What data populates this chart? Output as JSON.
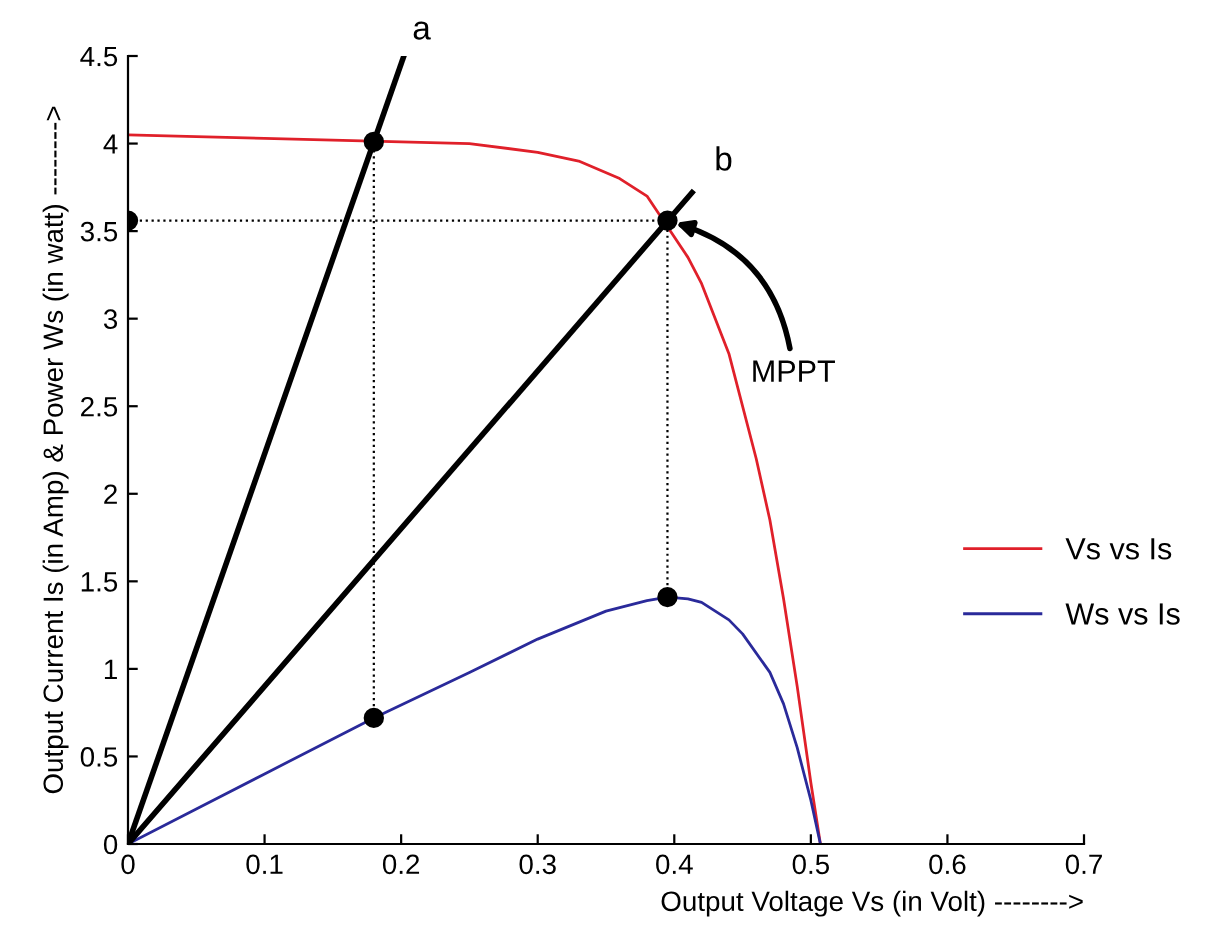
{
  "chart_data": {
    "type": "line",
    "xlabel": "Output Voltage Vs (in Volt) -------->",
    "ylabel": "Output Current Is (in Amp) & Power Ws (in watt) -------->",
    "xlim": [
      0,
      0.7
    ],
    "xticks": [
      0,
      0.1,
      0.2,
      0.3,
      0.4,
      0.5,
      0.6,
      0.7
    ],
    "ylim": [
      0,
      4.5
    ],
    "yticks": [
      0,
      0.5,
      1,
      1.5,
      2,
      2.5,
      3,
      3.5,
      4,
      4.5
    ],
    "grid": false,
    "legend": "right",
    "series": [
      {
        "name": "Vs vs Is",
        "color": "#e0202a",
        "x": [
          0,
          0.05,
          0.1,
          0.25,
          0.3,
          0.33,
          0.36,
          0.38,
          0.41,
          0.42,
          0.44,
          0.46,
          0.47,
          0.48,
          0.49,
          0.5,
          0.507
        ],
        "values": [
          4.05,
          4.04,
          4.03,
          4.0,
          3.95,
          3.9,
          3.8,
          3.7,
          3.35,
          3.2,
          2.8,
          2.2,
          1.85,
          1.4,
          0.9,
          0.35,
          0
        ]
      },
      {
        "name": "Ws vs Is",
        "color": "#2a2a9a",
        "x": [
          0,
          0.05,
          0.1,
          0.18,
          0.25,
          0.3,
          0.35,
          0.38,
          0.395,
          0.41,
          0.42,
          0.44,
          0.45,
          0.47,
          0.48,
          0.49,
          0.5,
          0.507
        ],
        "values": [
          0,
          0.2,
          0.4,
          0.72,
          0.98,
          1.17,
          1.33,
          1.39,
          1.41,
          1.4,
          1.38,
          1.28,
          1.2,
          0.98,
          0.8,
          0.55,
          0.25,
          0
        ]
      },
      {
        "color": "#000000",
        "x": [
          0,
          0.202
        ],
        "values": [
          0,
          4.5
        ]
      },
      {
        "color": "#000000",
        "x": [
          0,
          0.413
        ],
        "values": [
          0,
          3.72
        ]
      },
      {
        "color": "#000000",
        "line_style": "dotted",
        "x": [
          0,
          0.395
        ],
        "values": [
          3.56,
          3.56
        ]
      },
      {
        "color": "#000000",
        "line_style": "dotted",
        "x": [
          0.18,
          0.18
        ],
        "values": [
          0.72,
          4.01
        ]
      },
      {
        "color": "#000000",
        "line_style": "dotted",
        "x": [
          0.395,
          0.395
        ],
        "values": [
          1.41,
          3.56
        ]
      },
      {
        "type": "scatter",
        "color": "#000000",
        "marker": "circle",
        "x": [
          0.18,
          0.395,
          0.18,
          0.395,
          0
        ],
        "values": [
          4.01,
          3.56,
          0.72,
          1.41,
          3.56
        ]
      }
    ],
    "annotations": [
      {
        "text": "a",
        "x": 0.2,
        "y": 4.5
      },
      {
        "text": "b",
        "x": 0.413,
        "y": 3.72
      },
      {
        "text": "MPPT",
        "x": 0.395,
        "y": 3.56
      }
    ]
  }
}
